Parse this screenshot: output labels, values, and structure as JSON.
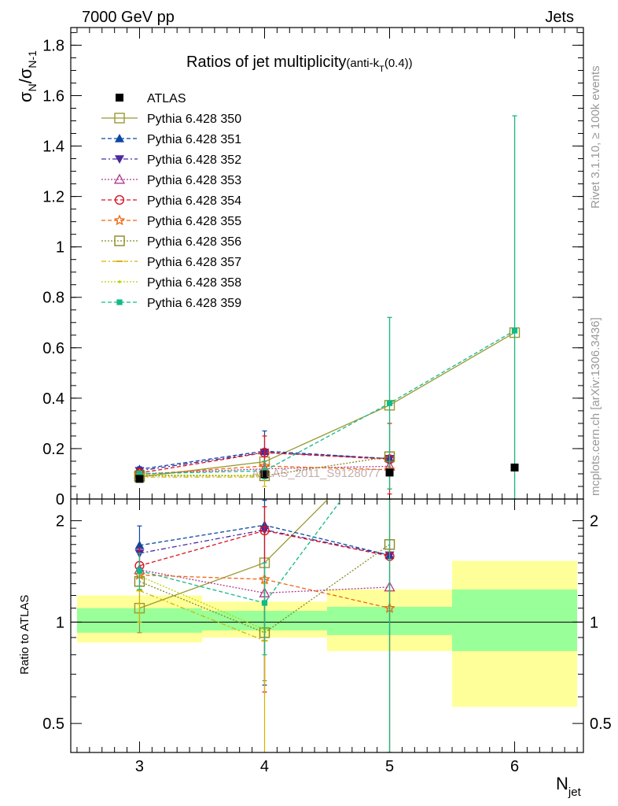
{
  "header": {
    "left": "7000 GeV pp",
    "right": "Jets"
  },
  "side_labels": {
    "rivet": "Rivet 3.1.10, ≥ 100k events",
    "mcplots": "mcplots.cern.ch [arXiv:1306.3436]"
  },
  "watermark": "ATLAS_2011_S9128077",
  "chart_data": {
    "type": "line",
    "title": "Ratios of jet multiplicity",
    "title_suffix": "(anti-k",
    "title_sub": "T",
    "title_end": "(0.4))",
    "ylabel_main": "σ",
    "ylabel_sub1": "N",
    "ylabel_slash": "/σ",
    "ylabel_sub2": "N-1",
    "xlabel_main": "N",
    "xlabel_sub": "jet",
    "ratio_ylabel": "Ratio to ATLAS",
    "x": [
      3,
      4,
      5,
      6
    ],
    "xlim": [
      2.45,
      6.55
    ],
    "xticks": [
      "3",
      "4",
      "5",
      "6"
    ],
    "main_ylim": [
      0,
      1.87
    ],
    "main_yticks": [
      "0",
      "0.2",
      "0.4",
      "0.6",
      "0.8",
      "1",
      "1.2",
      "1.4",
      "1.6",
      "1.8"
    ],
    "ratio_ylim": [
      0.41,
      2.32
    ],
    "ratio_yticks": [
      "0.5",
      "1",
      "2"
    ],
    "ratio_scale": "log",
    "legend_position": "top-left",
    "atlas": {
      "name": "ATLAS",
      "values": [
        0.08,
        0.098,
        0.105,
        0.125
      ]
    },
    "uncertainty_bands": {
      "inner": [
        [
          0.93,
          1.1
        ],
        [
          0.945,
          1.08
        ],
        [
          0.915,
          1.11
        ],
        [
          0.82,
          1.25
        ]
      ],
      "outer": [
        [
          0.87,
          1.2
        ],
        [
          0.9,
          1.15
        ],
        [
          0.82,
          1.25
        ],
        [
          0.56,
          1.52
        ]
      ]
    },
    "series": [
      {
        "name": "Pythia 6.428 350",
        "color": "#999933",
        "marker": "square-open",
        "dash": "",
        "values": [
          0.088,
          0.148,
          0.372,
          0.66
        ],
        "ratio": [
          1.1,
          1.5,
          3.54,
          null
        ],
        "main_err": [
          [
            0.074,
            0.1
          ],
          [
            0.1,
            0.2
          ],
          [
            0.04,
            0.72
          ],
          [
            0,
            1.52
          ]
        ],
        "ratio_err": [
          [
            0.93,
            1.25
          ],
          [
            0.67,
            2.4
          ],
          [
            0.41,
            2.32
          ],
          null
        ]
      },
      {
        "name": "Pythia 6.428 351",
        "color": "#0d47a1",
        "marker": "triangle-up",
        "dash": "5,3",
        "values": [
          0.118,
          0.19,
          0.16,
          null
        ],
        "ratio": [
          1.69,
          1.94,
          1.58,
          null
        ],
        "main_err": [
          [
            0.108,
            0.128
          ],
          [
            0.12,
            0.27
          ],
          null,
          null
        ],
        "ratio_err": [
          [
            1.45,
            1.93
          ],
          [
            0.65,
            2.3
          ],
          null,
          null
        ]
      },
      {
        "name": "Pythia 6.428 352",
        "color": "#4b2a9e",
        "marker": "triangle-down",
        "dash": "6,3,2,3",
        "values": [
          0.112,
          0.185,
          0.16,
          null
        ],
        "ratio": [
          1.6,
          1.88,
          1.58,
          null
        ],
        "main_err": null,
        "ratio_err": null
      },
      {
        "name": "Pythia 6.428 353",
        "color": "#b0388a",
        "marker": "triangle-open",
        "dash": "2,2",
        "values": [
          0.1,
          0.12,
          0.13,
          null
        ],
        "ratio": [
          1.43,
          1.22,
          1.27,
          null
        ],
        "main_err": null,
        "ratio_err": null
      },
      {
        "name": "Pythia 6.428 354",
        "color": "#dd1122",
        "marker": "circle-open",
        "dash": "5,3",
        "values": [
          0.103,
          0.184,
          0.158,
          null
        ],
        "ratio": [
          1.47,
          1.87,
          1.57,
          null
        ],
        "main_err": [
          [
            0.09,
            0.116
          ],
          [
            0.12,
            0.25
          ],
          [
            0.02,
            0.3
          ],
          null
        ],
        "ratio_err": [
          [
            1.28,
            1.66
          ],
          [
            0.62,
            2.2
          ],
          [
            0.41,
            2.32
          ],
          null
        ]
      },
      {
        "name": "Pythia 6.428 355",
        "color": "#ee6611",
        "marker": "star",
        "dash": "5,3",
        "values": [
          0.097,
          0.131,
          0.116,
          null
        ],
        "ratio": [
          1.38,
          1.34,
          1.1,
          null
        ],
        "main_err": null,
        "ratio_err": null
      },
      {
        "name": "Pythia 6.428 356",
        "color": "#888822",
        "marker": "square-open",
        "dash": "2,2",
        "values": [
          0.092,
          0.092,
          0.168,
          null
        ],
        "ratio": [
          1.32,
          0.93,
          1.7,
          null
        ],
        "main_err": null,
        "ratio_err": null
      },
      {
        "name": "Pythia 6.428 357",
        "color": "#d4b400",
        "marker": "dash",
        "dash": "6,3,2,3",
        "values": [
          0.087,
          0.087,
          null,
          null
        ],
        "ratio": [
          1.24,
          0.88,
          null,
          null
        ],
        "main_err": [
          [
            0.07,
            0.1
          ],
          [
            0.05,
            0.12
          ],
          null,
          null
        ],
        "ratio_err": [
          [
            1.0,
            1.4
          ],
          [
            0.41,
            1.3
          ],
          null,
          null
        ]
      },
      {
        "name": "Pythia 6.428 358",
        "color": "#b8d400",
        "marker": "dot",
        "dash": "2,2",
        "values": [
          0.096,
          0.094,
          null,
          null
        ],
        "ratio": [
          1.37,
          0.95,
          null,
          null
        ],
        "main_err": null,
        "ratio_err": null
      },
      {
        "name": "Pythia 6.428 359",
        "color": "#11bb88",
        "marker": "square-filled",
        "dash": "5,3",
        "values": [
          0.1,
          0.112,
          0.38,
          0.668
        ],
        "ratio": [
          1.42,
          1.14,
          3.6,
          null
        ],
        "main_err": [
          [
            0.09,
            0.11
          ],
          [
            0.08,
            0.15
          ],
          [
            0.04,
            0.72
          ],
          [
            0,
            1.52
          ]
        ],
        "ratio_err": [
          [
            1.25,
            1.6
          ],
          [
            0.8,
            1.5
          ],
          [
            0.41,
            2.32
          ],
          null
        ]
      }
    ]
  }
}
